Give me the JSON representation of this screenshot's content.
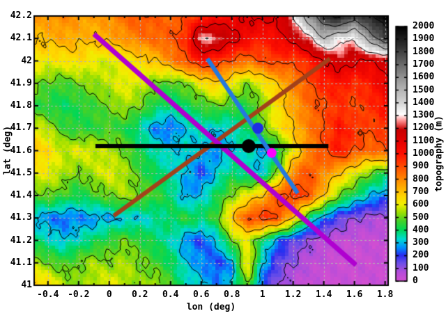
{
  "chart_data": {
    "type": "heatmap",
    "title": "",
    "xlabel": "lon (deg)",
    "ylabel": "lat (deg)",
    "xlim": [
      -0.49,
      1.82
    ],
    "ylim": [
      41.0,
      42.2
    ],
    "grid_on": true,
    "grid_style": {
      "color": "#b4b4b4",
      "dash": [
        3,
        3
      ]
    },
    "x_tick_values": [
      -0.4,
      -0.2,
      0,
      0.2,
      0.4,
      0.6,
      0.8,
      1,
      1.2,
      1.4,
      1.6,
      1.8
    ],
    "x_tick_labels": [
      "-0.4",
      "-0.2",
      "0",
      "0.2",
      "0.4",
      "0.6",
      "0.8",
      "1",
      "1.2",
      "1.4",
      "1.6",
      "1.8"
    ],
    "x_minor_step": 0.1,
    "y_tick_values": [
      42.2,
      42.1,
      42,
      41.9,
      41.8,
      41.7,
      41.6,
      41.5,
      41.4,
      41.3,
      41.2,
      41.1,
      41
    ],
    "y_tick_labels": [
      "42.2",
      "42.1",
      "42",
      "41.9",
      "41.8",
      "41.7",
      "41.6",
      "41.5",
      "41.4",
      "41.3",
      "41.2",
      "41.1",
      "41"
    ],
    "colorbar": {
      "label": "topography (m)",
      "min": 0,
      "max": 2000,
      "tick_step": 100,
      "tick_labels": [
        "2000",
        "1900",
        "1800",
        "1700",
        "1600",
        "1500",
        "1400",
        "1300",
        "1200",
        "1100",
        "1000",
        "900",
        "800",
        "700",
        "600",
        "500",
        "400",
        "300",
        "200",
        "100",
        "0"
      ]
    },
    "palette": [
      [
        0,
        "#d24fd2"
      ],
      [
        70,
        "#b44ddb"
      ],
      [
        140,
        "#6b50e8"
      ],
      [
        200,
        "#2a2af0"
      ],
      [
        260,
        "#0090ff"
      ],
      [
        330,
        "#00dcd0"
      ],
      [
        400,
        "#00d858"
      ],
      [
        470,
        "#44d22a"
      ],
      [
        540,
        "#a0e000"
      ],
      [
        600,
        "#f0f000"
      ],
      [
        660,
        "#ffd800"
      ],
      [
        760,
        "#ffa000"
      ],
      [
        840,
        "#ff7000"
      ],
      [
        920,
        "#ff4000"
      ],
      [
        1000,
        "#ff1000"
      ],
      [
        1100,
        "#e40000"
      ],
      [
        1190,
        "#c80000"
      ],
      [
        1260,
        "#ff9090"
      ],
      [
        1310,
        "#ffffff"
      ],
      [
        1400,
        "#d6d6d6"
      ],
      [
        1550,
        "#a6a6a6"
      ],
      [
        1700,
        "#6c6c6c"
      ],
      [
        1850,
        "#303030"
      ],
      [
        2000,
        "#000000"
      ]
    ],
    "contour_levels": [
      100,
      300,
      500,
      700,
      900,
      1100,
      1300,
      1500,
      1700,
      1900
    ],
    "elevation_grid": {
      "lon_start": -0.5,
      "lon_step": 0.1,
      "lat_start": 42.2,
      "lat_step": -0.1,
      "values": [
        [
          760,
          780,
          800,
          780,
          760,
          790,
          850,
          900,
          870,
          850,
          900,
          950,
          1000,
          1050,
          1100,
          1150,
          1100,
          1300,
          1600,
          1850,
          1950,
          1800,
          1900,
          2000
        ],
        [
          700,
          720,
          750,
          730,
          710,
          740,
          780,
          830,
          860,
          880,
          950,
          1300,
          1250,
          1150,
          1050,
          980,
          1050,
          1150,
          1250,
          1500,
          1350,
          1300,
          1600,
          1800
        ],
        [
          640,
          610,
          630,
          650,
          600,
          580,
          610,
          650,
          700,
          800,
          900,
          1000,
          950,
          880,
          840,
          900,
          940,
          900,
          980,
          1080,
          1180,
          1120,
          1080,
          1150
        ],
        [
          520,
          480,
          460,
          500,
          530,
          560,
          610,
          580,
          500,
          460,
          510,
          610,
          700,
          610,
          510,
          610,
          700,
          800,
          890,
          980,
          1000,
          950,
          990,
          1080
        ],
        [
          450,
          430,
          400,
          430,
          460,
          500,
          550,
          500,
          430,
          380,
          410,
          450,
          500,
          450,
          430,
          510,
          650,
          750,
          850,
          900,
          950,
          900,
          950,
          1000
        ],
        [
          600,
          550,
          460,
          430,
          440,
          460,
          430,
          360,
          250,
          230,
          310,
          350,
          310,
          330,
          410,
          510,
          610,
          710,
          810,
          900,
          1000,
          950,
          900,
          950
        ],
        [
          700,
          650,
          560,
          600,
          580,
          550,
          500,
          410,
          360,
          310,
          330,
          300,
          260,
          310,
          360,
          260,
          410,
          610,
          800,
          900,
          1000,
          900,
          850,
          900
        ],
        [
          620,
          600,
          550,
          500,
          550,
          600,
          550,
          460,
          400,
          350,
          300,
          210,
          310,
          400,
          350,
          310,
          510,
          810,
          900,
          800,
          700,
          600,
          500,
          410
        ],
        [
          460,
          500,
          460,
          410,
          460,
          500,
          550,
          500,
          460,
          400,
          260,
          310,
          410,
          510,
          610,
          710,
          900,
          950,
          900,
          700,
          500,
          400,
          300,
          260
        ],
        [
          300,
          250,
          230,
          250,
          260,
          280,
          300,
          310,
          350,
          400,
          450,
          400,
          460,
          700,
          900,
          950,
          900,
          700,
          400,
          250,
          150,
          100,
          80,
          60
        ],
        [
          400,
          350,
          300,
          350,
          400,
          450,
          500,
          450,
          400,
          350,
          260,
          210,
          300,
          500,
          600,
          400,
          250,
          150,
          100,
          60,
          40,
          30,
          30,
          30
        ],
        [
          550,
          500,
          460,
          500,
          550,
          510,
          550,
          510,
          460,
          410,
          310,
          260,
          210,
          260,
          650,
          310,
          150,
          100,
          50,
          30,
          20,
          20,
          20,
          20
        ],
        [
          720,
          650,
          560,
          510,
          560,
          610,
          560,
          510,
          560,
          460,
          360,
          310,
          260,
          310,
          510,
          210,
          100,
          50,
          30,
          20,
          20,
          20,
          20,
          20
        ]
      ]
    },
    "overlays": {
      "lines": [
        {
          "name": "brown-line",
          "color": "#a2411a",
          "width": 6,
          "points": [
            [
              0.03,
              41.31
            ],
            [
              1.44,
              42.01
            ]
          ]
        },
        {
          "name": "magenta-line",
          "color": "#b000d0",
          "width": 7,
          "points": [
            [
              -0.1,
              42.12
            ],
            [
              1.61,
              41.09
            ]
          ]
        },
        {
          "name": "black-profile-line",
          "color": "#000000",
          "width": 6,
          "points": [
            [
              -0.09,
              41.62
            ],
            [
              1.43,
              41.62
            ]
          ]
        },
        {
          "name": "blue-line",
          "color": "#2579de",
          "width": 6,
          "points": [
            [
              0.64,
              42.01
            ],
            [
              1.23,
              41.41
            ]
          ]
        }
      ],
      "points": [
        {
          "name": "black-dot",
          "color": "#000000",
          "lon": 0.91,
          "lat": 41.62,
          "radius": 10
        },
        {
          "name": "blue-dot",
          "color": "#1d2fe3",
          "lon": 0.97,
          "lat": 41.7,
          "radius": 8
        },
        {
          "name": "magenta-dot",
          "color": "#ff00ff",
          "lon": 1.06,
          "lat": 41.59,
          "radius": 7
        }
      ]
    }
  }
}
